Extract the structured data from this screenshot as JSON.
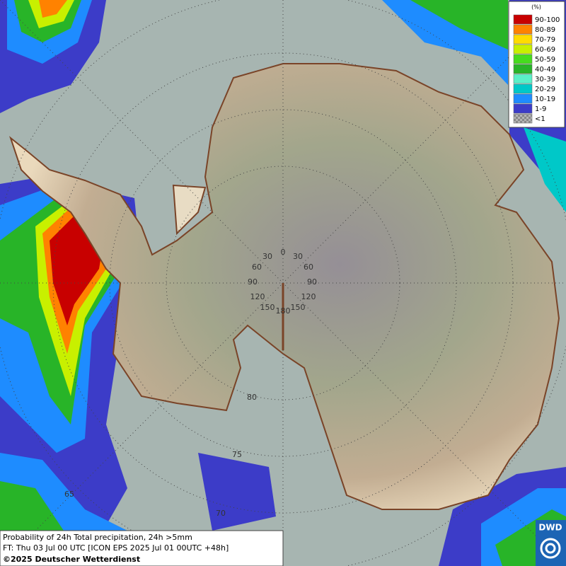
{
  "legend": {
    "unit": "(%)",
    "classes": [
      {
        "label": "90-100",
        "color": "#c80000"
      },
      {
        "label": "80-89",
        "color": "#ff8200"
      },
      {
        "label": "70-79",
        "color": "#ffdc00"
      },
      {
        "label": "60-69",
        "color": "#c8f000"
      },
      {
        "label": "50-59",
        "color": "#46dc1e"
      },
      {
        "label": "40-49",
        "color": "#28b428"
      },
      {
        "label": "30-39",
        "color": "#5af0c8"
      },
      {
        "label": "20-29",
        "color": "#00c8c8"
      },
      {
        "label": "10-19",
        "color": "#1e8cff"
      },
      {
        "label": "1-9",
        "color": "#3c3cc8"
      },
      {
        "label": "<1",
        "color": "#b4b4b4"
      }
    ]
  },
  "caption": {
    "lines": [
      "Probability of 24h Total precipitation, 24h >5mm",
      "FT: Thu 03 Jul 00 UTC [ICON EPS 2025 Jul 01 00UTC +48h]",
      "©2025 Deutscher Wetterdienst"
    ]
  },
  "logo": "DWD",
  "graticule_labels": [
    "0",
    "30",
    "30",
    "60",
    "60",
    "90",
    "90",
    "120",
    "120",
    "150",
    "150",
    "180",
    "80",
    "75",
    "65",
    "70"
  ]
}
